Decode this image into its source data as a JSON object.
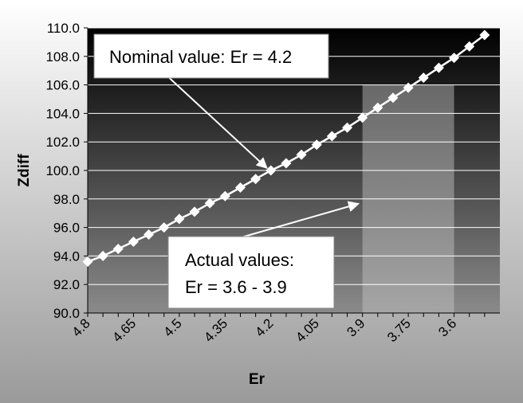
{
  "chart_data": {
    "type": "line",
    "xlabel": "Er",
    "ylabel": "Zdiff",
    "x_reversed": true,
    "xlim": [
      3.45,
      4.8
    ],
    "ylim": [
      90,
      110
    ],
    "y_ticks": [
      "90.0",
      "92.0",
      "94.0",
      "96.0",
      "98.0",
      "100.0",
      "102.0",
      "104.0",
      "106.0",
      "108.0",
      "110.0"
    ],
    "x_ticks": [
      {
        "value": 4.8,
        "label": "4.8"
      },
      {
        "value": 4.65,
        "label": "4.65"
      },
      {
        "value": 4.5,
        "label": "4.5"
      },
      {
        "value": 4.35,
        "label": "4.35"
      },
      {
        "value": 4.2,
        "label": "4.2"
      },
      {
        "value": 4.05,
        "label": "4.05"
      },
      {
        "value": 3.9,
        "label": "3.9"
      },
      {
        "value": 3.75,
        "label": "3.75"
      },
      {
        "value": 3.6,
        "label": "3.6"
      }
    ],
    "grid": "horizontal",
    "series": [
      {
        "marker": "diamond",
        "x": [
          4.8,
          4.75,
          4.7,
          4.65,
          4.6,
          4.55,
          4.5,
          4.45,
          4.4,
          4.35,
          4.3,
          4.25,
          4.2,
          4.15,
          4.1,
          4.05,
          4.0,
          3.95,
          3.9,
          3.85,
          3.8,
          3.75,
          3.7,
          3.65,
          3.6,
          3.55,
          3.5
        ],
        "values": [
          93.6,
          94.0,
          94.5,
          95.0,
          95.5,
          96.0,
          96.6,
          97.1,
          97.7,
          98.2,
          98.8,
          99.4,
          100.0,
          100.5,
          101.1,
          101.8,
          102.4,
          103.0,
          103.7,
          104.4,
          105.1,
          105.8,
          106.5,
          107.2,
          107.9,
          108.7,
          109.5
        ]
      }
    ],
    "highlight_range": [
      3.6,
      3.9
    ],
    "annotations": [
      {
        "lines": [
          "Nominal value: Er = 4.2"
        ],
        "points_to": [
          4.2,
          100.0
        ]
      },
      {
        "lines": [
          "Actual values:",
          "Er = 3.6 - 3.9"
        ],
        "points_to": [
          3.9,
          97.5
        ]
      }
    ],
    "colors": {
      "background_top": "#ffffff",
      "background_bottom": "#9a9a9a",
      "plot_top": "#000000",
      "plot_bottom": "#8a8a8a",
      "highlight": "#c8c8c8",
      "series": "#ffffff",
      "grid": "#ffffff"
    }
  }
}
